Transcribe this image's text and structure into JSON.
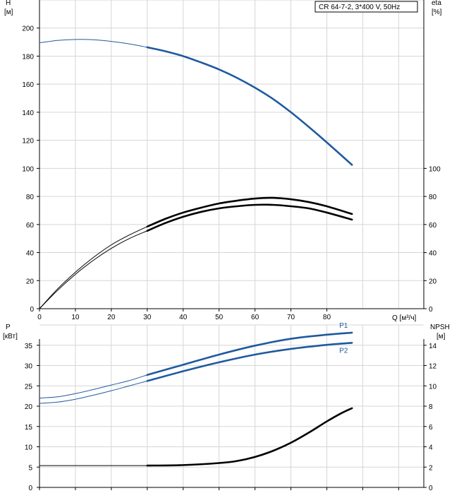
{
  "chart_data": [
    {
      "type": "line",
      "panel": "top",
      "title_box": "CR 64-7-2, 3*400 V, 50Hz",
      "x_axis": {
        "label": "Q [м³/ч]",
        "ticks": [
          "0",
          "10",
          "20",
          "30",
          "40",
          "50",
          "60",
          "70",
          "80"
        ],
        "range": [
          0,
          107
        ]
      },
      "y_left": {
        "label": "H",
        "unit": "[м]",
        "ticks": [
          "0",
          "20",
          "40",
          "60",
          "80",
          "100",
          "120",
          "140",
          "160",
          "180",
          "200"
        ],
        "range": [
          0,
          220
        ]
      },
      "y_right": {
        "label": "eta",
        "unit": "[%]",
        "ticks": [
          "0",
          "20",
          "40",
          "60",
          "80",
          "100"
        ],
        "range": [
          0,
          220
        ]
      },
      "grid": true,
      "series": [
        {
          "key": "H",
          "axis": "left",
          "color": "#1f5aa0",
          "thin_points": [
            [
              0,
              189.5
            ],
            [
              5,
              191.2
            ],
            [
              10,
              191.9
            ],
            [
              15,
              191.7
            ],
            [
              20,
              190.5
            ],
            [
              25,
              188.7
            ],
            [
              30,
              186.3
            ]
          ],
          "thick_points": [
            [
              30,
              186.3
            ],
            [
              35,
              183.5
            ],
            [
              40,
              180
            ],
            [
              45,
              175.5
            ],
            [
              50,
              170.5
            ],
            [
              55,
              164.5
            ],
            [
              60,
              157.5
            ],
            [
              65,
              149.5
            ],
            [
              70,
              140
            ],
            [
              75,
              129.5
            ],
            [
              80,
              118.5
            ],
            [
              87,
              102.5
            ]
          ]
        },
        {
          "key": "eta-1",
          "axis": "right",
          "color": "#000000",
          "thin_points": [
            [
              0,
              0
            ],
            [
              5,
              14
            ],
            [
              10,
              26
            ],
            [
              15,
              36.5
            ],
            [
              20,
              45.5
            ],
            [
              25,
              52.5
            ],
            [
              30,
              58.5
            ]
          ],
          "thick_points": [
            [
              30,
              58.5
            ],
            [
              35,
              64
            ],
            [
              40,
              68.5
            ],
            [
              45,
              72
            ],
            [
              50,
              75
            ],
            [
              55,
              77
            ],
            [
              60,
              78.5
            ],
            [
              65,
              79
            ],
            [
              70,
              78
            ],
            [
              75,
              76
            ],
            [
              80,
              73
            ],
            [
              87,
              67.5
            ]
          ]
        },
        {
          "key": "eta-2",
          "axis": "right",
          "color": "#000000",
          "thin_points": [
            [
              0,
              0
            ],
            [
              5,
              13
            ],
            [
              10,
              24.5
            ],
            [
              15,
              34.5
            ],
            [
              20,
              43
            ],
            [
              25,
              50
            ],
            [
              30,
              55.5
            ]
          ],
          "thick_points": [
            [
              30,
              55.5
            ],
            [
              35,
              61
            ],
            [
              40,
              65.5
            ],
            [
              45,
              69
            ],
            [
              50,
              71.5
            ],
            [
              55,
              73
            ],
            [
              60,
              74
            ],
            [
              65,
              74
            ],
            [
              70,
              73
            ],
            [
              75,
              71.5
            ],
            [
              80,
              68.5
            ],
            [
              87,
              63.5
            ]
          ]
        }
      ]
    },
    {
      "type": "line",
      "panel": "bottom",
      "x_axis": {
        "ticks": [],
        "range": [
          0,
          107
        ]
      },
      "y_left": {
        "label": "P",
        "unit": "[кВт]",
        "ticks": [
          "0",
          "5",
          "10",
          "15",
          "20",
          "25",
          "30",
          "35"
        ],
        "range": [
          0,
          40
        ]
      },
      "y_right": {
        "label": "NPSH",
        "unit": "[м]",
        "ticks": [
          "0",
          "2",
          "4",
          "6",
          "8",
          "10",
          "12",
          "14"
        ],
        "range": [
          0,
          16
        ]
      },
      "grid": true,
      "series": [
        {
          "name": "P1",
          "axis": "left",
          "color": "#1f5aa0",
          "thin_points": [
            [
              0,
              22
            ],
            [
              5,
              22.3
            ],
            [
              10,
              23.1
            ],
            [
              15,
              24.1
            ],
            [
              20,
              25.2
            ],
            [
              25,
              26.3
            ],
            [
              30,
              27.7
            ]
          ],
          "thick_points": [
            [
              30,
              27.7
            ],
            [
              40,
              30.2
            ],
            [
              50,
              32.7
            ],
            [
              60,
              34.9
            ],
            [
              70,
              36.6
            ],
            [
              80,
              37.6
            ],
            [
              87,
              38.1
            ]
          ]
        },
        {
          "name": "P2",
          "axis": "left",
          "color": "#1f5aa0",
          "thin_points": [
            [
              0,
              20.7
            ],
            [
              5,
              21
            ],
            [
              10,
              21.7
            ],
            [
              15,
              22.7
            ],
            [
              20,
              23.8
            ],
            [
              25,
              25
            ],
            [
              30,
              26.2
            ]
          ],
          "thick_points": [
            [
              30,
              26.2
            ],
            [
              40,
              28.6
            ],
            [
              50,
              30.8
            ],
            [
              60,
              32.7
            ],
            [
              70,
              34.1
            ],
            [
              80,
              35.1
            ],
            [
              87,
              35.6
            ]
          ]
        },
        {
          "key": "NPSH",
          "axis": "right",
          "color": "#000000",
          "thin_points": [
            [
              0,
              2.15
            ],
            [
              10,
              2.15
            ],
            [
              20,
              2.15
            ],
            [
              30,
              2.15
            ]
          ],
          "thick_points": [
            [
              30,
              2.15
            ],
            [
              40,
              2.2
            ],
            [
              50,
              2.4
            ],
            [
              55,
              2.6
            ],
            [
              60,
              3
            ],
            [
              65,
              3.6
            ],
            [
              70,
              4.4
            ],
            [
              75,
              5.4
            ],
            [
              80,
              6.5
            ],
            [
              84,
              7.3
            ],
            [
              87,
              7.8
            ]
          ]
        }
      ]
    }
  ]
}
